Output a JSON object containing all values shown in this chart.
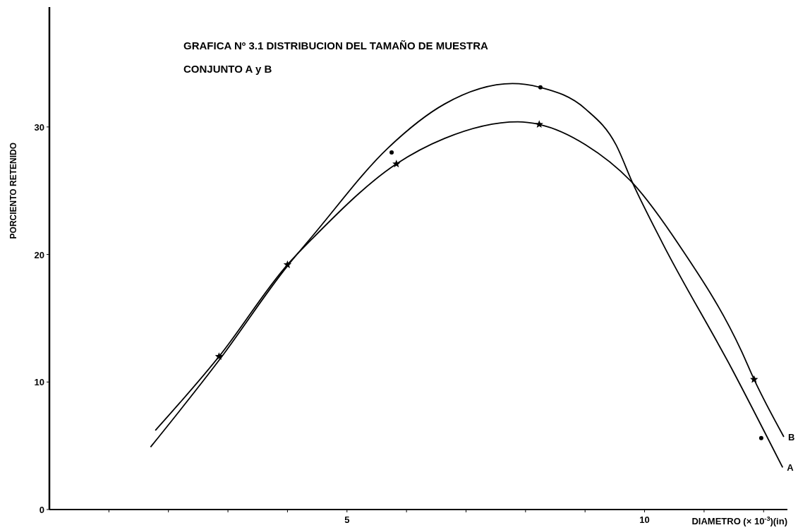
{
  "chart_data": {
    "type": "line",
    "title": "GRAFICA Nº 3.1 DISTRIBUCION DEL TAMAÑO DE MUESTRA",
    "subtitle": "CONJUNTO A y B",
    "xlabel": "DIAMETRO (× 10$^{-3}$)(in)",
    "ylabel": "PORCIENTO RETENIDO",
    "xlim": [
      0,
      12.4
    ],
    "ylim": [
      0,
      39.4
    ],
    "xticks": [
      {
        "value": 1,
        "label": null
      },
      {
        "value": 2,
        "label": null
      },
      {
        "value": 3,
        "label": null
      },
      {
        "value": 4,
        "label": null
      },
      5,
      {
        "value": 6,
        "label": null
      },
      {
        "value": 7,
        "label": null
      },
      {
        "value": 8,
        "label": null
      },
      {
        "value": 9,
        "label": null
      },
      10,
      {
        "value": 11,
        "label": null
      },
      {
        "value": 12,
        "label": null
      }
    ],
    "yticks": [
      0,
      10,
      20,
      30
    ],
    "grid": false,
    "series": [
      {
        "name": "A",
        "color": "#000000",
        "marker": "none",
        "x": [
          1.7,
          2.85,
          4.0,
          4.43,
          5.7,
          6.64,
          7.78,
          8.25,
          9.01,
          9.52,
          9.8,
          10.3,
          11.47,
          12.32
        ],
        "values": [
          4.9,
          11.7,
          19.1,
          21.5,
          28.4,
          31.8,
          33.4,
          33.1,
          31.4,
          28.6,
          25.6,
          20.9,
          11.0,
          3.3
        ]
      },
      {
        "name": "B",
        "color": "#000000",
        "marker": "none",
        "x": [
          1.78,
          2.85,
          4.0,
          4.43,
          5.83,
          6.64,
          7.87,
          8.23,
          9.01,
          9.8,
          10.6,
          11.63,
          11.84,
          12.34
        ],
        "values": [
          6.2,
          12.0,
          19.2,
          21.3,
          27.1,
          29.1,
          30.4,
          30.2,
          28.6,
          25.6,
          20.6,
          12.4,
          10.2,
          5.7
        ]
      },
      {
        "type": "scatter",
        "color": "#000000",
        "marker": "circle",
        "x": [
          5.75,
          8.25,
          11.96
        ],
        "values": [
          28.0,
          33.1,
          5.6
        ]
      },
      {
        "type": "scatter",
        "color": "#000000",
        "marker": "star",
        "x": [
          2.85,
          4.0,
          5.83,
          8.23,
          11.84
        ],
        "values": [
          12.0,
          19.2,
          27.1,
          30.2,
          10.2
        ]
      }
    ]
  }
}
